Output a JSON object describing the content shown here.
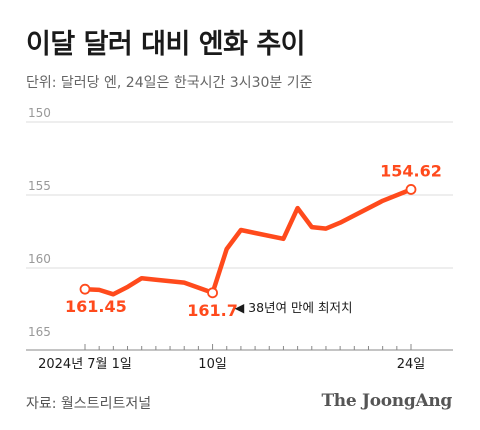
{
  "title": "이달 달러 대비 엔화 추이",
  "subtitle": "단위: 달러당 엔, 24일은 한국시간 3시30분 기준",
  "source": "자료: 월스트리트저널",
  "logo": "The JoongAng",
  "colors": {
    "line": "#ff4a1c",
    "value_label": "#ff4a1c",
    "grid": "#dcdcdc",
    "axis": "#888888",
    "tick_text": "#999999",
    "text": "#1a1a1a"
  },
  "chart_data": {
    "type": "line",
    "title": "이달 달러 대비 엔화 추이",
    "ylabel": "",
    "xlabel": "",
    "y_inverted": true,
    "ylim": [
      150,
      165
    ],
    "yticks": [
      150,
      155,
      160,
      165
    ],
    "xticks": [
      {
        "day": 1,
        "label": "2024년 7월 1일"
      },
      {
        "day": 10,
        "label": "10일"
      },
      {
        "day": 24,
        "label": "24일"
      }
    ],
    "series": [
      {
        "points": [
          {
            "day": 1,
            "value": 161.45
          },
          {
            "day": 2,
            "value": 161.5
          },
          {
            "day": 3,
            "value": 161.8
          },
          {
            "day": 4,
            "value": 161.3
          },
          {
            "day": 5,
            "value": 160.7
          },
          {
            "day": 6,
            "value": 160.8
          },
          {
            "day": 8,
            "value": 161.0
          },
          {
            "day": 10,
            "value": 161.7
          },
          {
            "day": 11,
            "value": 158.7
          },
          {
            "day": 12,
            "value": 157.4
          },
          {
            "day": 13,
            "value": 157.6
          },
          {
            "day": 15,
            "value": 158.0
          },
          {
            "day": 16,
            "value": 155.9
          },
          {
            "day": 17,
            "value": 157.2
          },
          {
            "day": 18,
            "value": 157.3
          },
          {
            "day": 19,
            "value": 156.9
          },
          {
            "day": 22,
            "value": 155.4
          },
          {
            "day": 24,
            "value": 154.62
          }
        ]
      }
    ],
    "annotations": [
      {
        "day": 1,
        "value": 161.45,
        "label": "161.45"
      },
      {
        "day": 10,
        "value": 161.7,
        "label": "161.7",
        "note": "◀ 38년여 만에 최저치"
      },
      {
        "day": 24,
        "value": 154.62,
        "label": "154.62"
      }
    ]
  }
}
